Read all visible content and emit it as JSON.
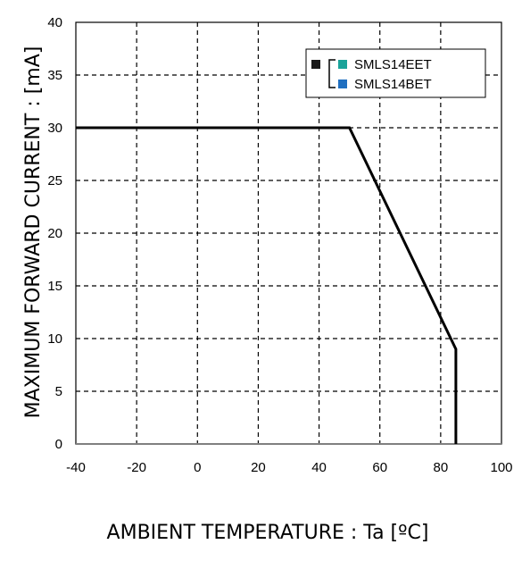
{
  "chart_data": {
    "type": "line",
    "title": "",
    "xlabel": "AMBIENT TEMPERATURE : Ta [ºC]",
    "ylabel": "MAXIMUM FORWARD CURRENT : [mA]",
    "xlim": [
      -40,
      100
    ],
    "ylim": [
      0,
      40
    ],
    "xticks": [
      "-40",
      "-20",
      "0",
      "20",
      "40",
      "60",
      "80",
      "100"
    ],
    "yticks": [
      "0",
      "5",
      "10",
      "15",
      "20",
      "25",
      "30",
      "35",
      "40"
    ],
    "grid": true,
    "legend_position": "top-right",
    "legend": [
      {
        "label": "SMLS14EET",
        "swatch_color": "#1aa39a"
      },
      {
        "label": "SMLS14BET",
        "swatch_color": "#1f6fc0"
      }
    ],
    "legend_marker_color": "#1a1a1a",
    "series": [
      {
        "color": "#000000",
        "x": [
          -40,
          50,
          85,
          85
        ],
        "y": [
          30,
          30,
          9,
          0
        ]
      }
    ]
  }
}
